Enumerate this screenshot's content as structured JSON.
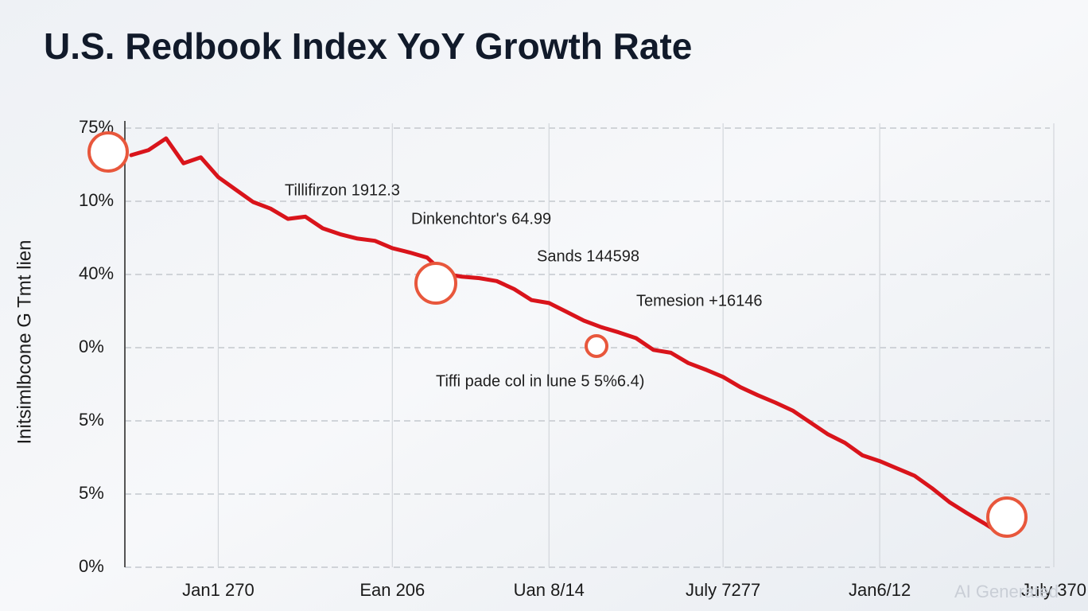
{
  "chart_data": {
    "type": "line",
    "title": "U.S. Redbook Index YoY Growth Rate",
    "ylabel": "Initsimlbcone G Tmt lien",
    "watermark": "AI Generated",
    "annotations": [
      "Tillifirzon 1912.3",
      "Dinkenchtor's 64.99",
      "Sands 144598",
      "Temesion +16146",
      "Tiffi pade col in lune 5 5%6.4)"
    ],
    "categories": [
      null,
      null,
      null,
      null,
      null,
      "Jan1 270",
      null,
      null,
      null,
      null,
      null,
      null,
      null,
      null,
      null,
      "Ean 206",
      null,
      null,
      null,
      null,
      null,
      null,
      null,
      null,
      "Uan 8/14",
      null,
      null,
      null,
      null,
      null,
      null,
      null,
      null,
      null,
      "July 7277",
      null,
      null,
      null,
      null,
      null,
      null,
      null,
      null,
      "Jan6/12",
      null,
      null,
      null,
      null,
      null,
      null,
      null,
      null,
      null,
      "July 370"
    ],
    "series": [
      {
        "name": "Redbook Index YoY",
        "color": "#d9141b",
        "values": [
          5.63,
          5.7,
          5.86,
          5.52,
          5.6,
          5.33,
          5.16,
          4.99,
          4.9,
          4.76,
          4.79,
          4.63,
          4.55,
          4.49,
          4.46,
          4.36,
          4.3,
          4.23,
          4.01,
          3.97,
          3.95,
          3.91,
          3.8,
          3.65,
          3.61,
          3.49,
          3.37,
          3.28,
          3.21,
          3.13,
          2.97,
          2.93,
          2.79,
          2.7,
          2.6,
          2.46,
          2.35,
          2.25,
          2.14,
          1.98,
          1.82,
          1.7,
          1.53,
          1.45,
          1.35,
          1.25,
          1.08,
          0.89,
          0.74,
          0.6,
          0.45,
          null,
          null,
          null
        ]
      }
    ],
    "ylim": [
      0,
      6
    ],
    "yticks": [
      {
        "value": 6,
        "label": "75%"
      },
      {
        "value": 5,
        "label": "10%"
      },
      {
        "value": 4,
        "label": "40%"
      },
      {
        "value": 3,
        "label": "0%"
      },
      {
        "value": 2,
        "label": "5%"
      },
      {
        "value": 1,
        "label": "5%"
      },
      {
        "value": 0,
        "label": "0%"
      }
    ],
    "grid": true
  }
}
